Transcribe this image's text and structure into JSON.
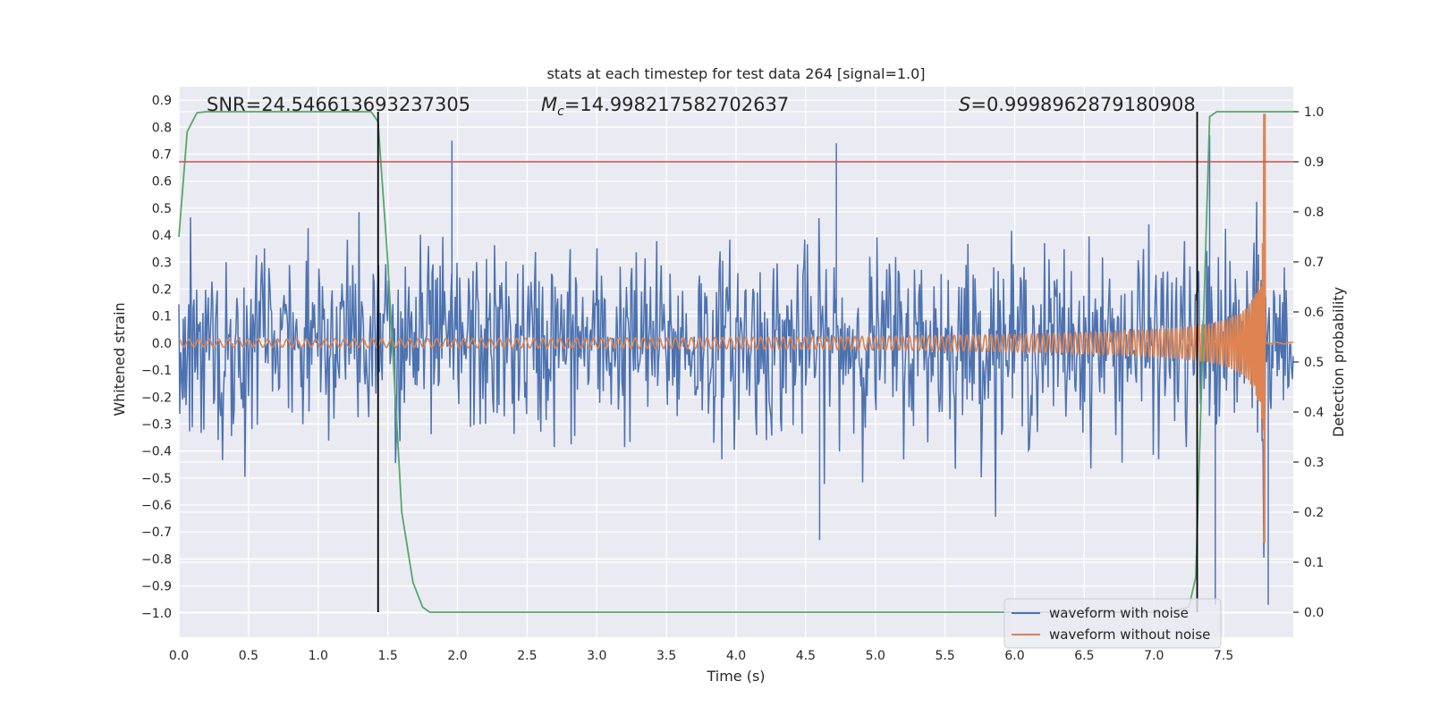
{
  "chart_data": {
    "type": "line",
    "title": "stats at each timestep for test data 264 [signal=1.0]",
    "xlabel": "Time (s)",
    "ylabel_left": "Whitened strain",
    "ylabel_right": "Detection probability",
    "xlim": [
      0.0,
      8.0
    ],
    "ylim_left": [
      -1.09,
      0.95
    ],
    "ylim_right": [
      -0.05,
      1.05
    ],
    "x_ticks": [
      "0.0",
      "0.5",
      "1.0",
      "1.5",
      "2.0",
      "2.5",
      "3.0",
      "3.5",
      "4.0",
      "4.5",
      "5.0",
      "5.5",
      "6.0",
      "6.5",
      "7.0",
      "7.5"
    ],
    "y_left_ticks": [
      "0.9",
      "0.8",
      "0.7",
      "0.6",
      "0.5",
      "0.4",
      "0.3",
      "0.2",
      "0.1",
      "0.0",
      "−0.1",
      "−0.2",
      "−0.3",
      "−0.4",
      "−0.5",
      "−0.6",
      "−0.7",
      "−0.8",
      "−0.9",
      "−1.0"
    ],
    "y_right_ticks": [
      "1.0",
      "0.9",
      "0.8",
      "0.7",
      "0.6",
      "0.5",
      "0.4",
      "0.3",
      "0.2",
      "0.1",
      "0.0"
    ],
    "annotations": {
      "snr": "SNR=24.546613693237305",
      "mc_symbol": "M",
      "mc_sub": "c",
      "mc_value": "=14.998217582702637",
      "s_symbol": "S",
      "s_value": "=0.9998962879180908"
    },
    "colors": {
      "noise": "#4c72b0",
      "signal": "#dd8452",
      "probability": "#55a868",
      "threshold": "#c44e52",
      "markers": "#000000",
      "background": "#eaeaf2",
      "grid": "#ffffff"
    },
    "series": [
      {
        "name": "waveform with noise",
        "axis": "left",
        "kind": "noise",
        "t_start": 0.0,
        "t_end": 8.0,
        "amplitude_rms": 0.2,
        "max": 0.75,
        "min": -0.97
      },
      {
        "name": "waveform without noise",
        "axis": "left",
        "kind": "chirp",
        "t_start": 0.0,
        "t_merger": 7.8,
        "t_end": 8.0,
        "peak_max": 0.85,
        "peak_min": -0.74
      },
      {
        "name": "detection probability",
        "axis": "right",
        "x": [
          0.0,
          0.06,
          0.13,
          0.2,
          0.5,
          1.0,
          1.38,
          1.43,
          1.5,
          1.6,
          1.68,
          1.75,
          1.8,
          2.5,
          3.5,
          4.5,
          5.5,
          6.5,
          7.1,
          7.25,
          7.3,
          7.4,
          7.45,
          7.6,
          8.0
        ],
        "values": [
          0.75,
          0.96,
          0.998,
          1.0,
          1.0,
          1.0,
          1.0,
          0.98,
          0.7,
          0.2,
          0.06,
          0.01,
          0.0,
          0.0,
          0.0,
          0.0,
          0.0,
          0.0,
          0.0,
          0.01,
          0.07,
          0.99,
          1.0,
          1.0,
          1.0
        ]
      }
    ],
    "threshold": {
      "axis": "right",
      "value": 0.9
    },
    "vlines": [
      1.43,
      7.31
    ],
    "legend": {
      "position": "bottom-right",
      "entries": [
        {
          "label": "waveform with noise",
          "color": "#4c72b0"
        },
        {
          "label": "waveform without noise",
          "color": "#dd8452"
        }
      ]
    }
  }
}
